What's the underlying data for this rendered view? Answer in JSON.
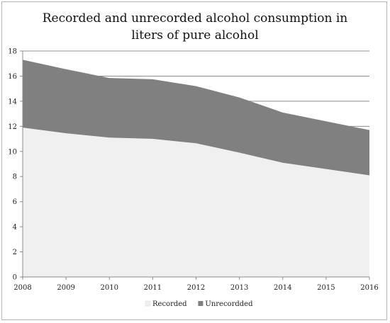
{
  "chart_data": {
    "type": "area",
    "stacked": true,
    "title": "Recorded and unrecorded alcohol consumption in liters of pure alcohol",
    "xlabel": "",
    "ylabel": "",
    "x": [
      "2008",
      "2009",
      "2010",
      "2011",
      "2012",
      "2013",
      "2014",
      "2015",
      "2016"
    ],
    "ylim": [
      0,
      18
    ],
    "yticks": [
      0,
      2,
      4,
      6,
      8,
      10,
      12,
      14,
      16,
      18
    ],
    "grid": true,
    "legend_position": "bottom",
    "series": [
      {
        "name": "Recorded",
        "color": "#f0f0f0",
        "values": [
          11.9,
          11.45,
          11.1,
          11.0,
          10.65,
          9.9,
          9.1,
          8.6,
          8.1
        ]
      },
      {
        "name": "Unrecordded",
        "color": "#808080",
        "values": [
          5.4,
          5.1,
          4.75,
          4.75,
          4.55,
          4.4,
          4.0,
          3.8,
          3.6
        ]
      }
    ]
  }
}
